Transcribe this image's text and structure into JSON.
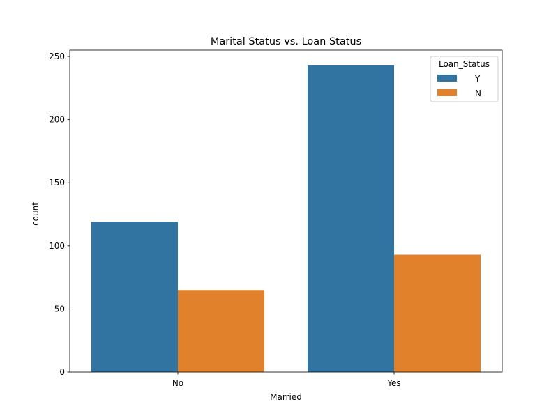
{
  "chart_data": {
    "type": "bar",
    "title": "Marital Status vs. Loan Status",
    "xlabel": "Married",
    "ylabel": "count",
    "categories": [
      "No",
      "Yes"
    ],
    "series": [
      {
        "name": "Y",
        "values": [
          119,
          243
        ],
        "color": "#3274a1"
      },
      {
        "name": "N",
        "values": [
          65,
          93
        ],
        "color": "#e1812c"
      }
    ],
    "ylim": [
      0,
      255
    ],
    "yticks": [
      0,
      50,
      100,
      150,
      200,
      250
    ],
    "grid": false,
    "legend": {
      "title": "Loan_Status",
      "placement": "upper-right"
    }
  }
}
